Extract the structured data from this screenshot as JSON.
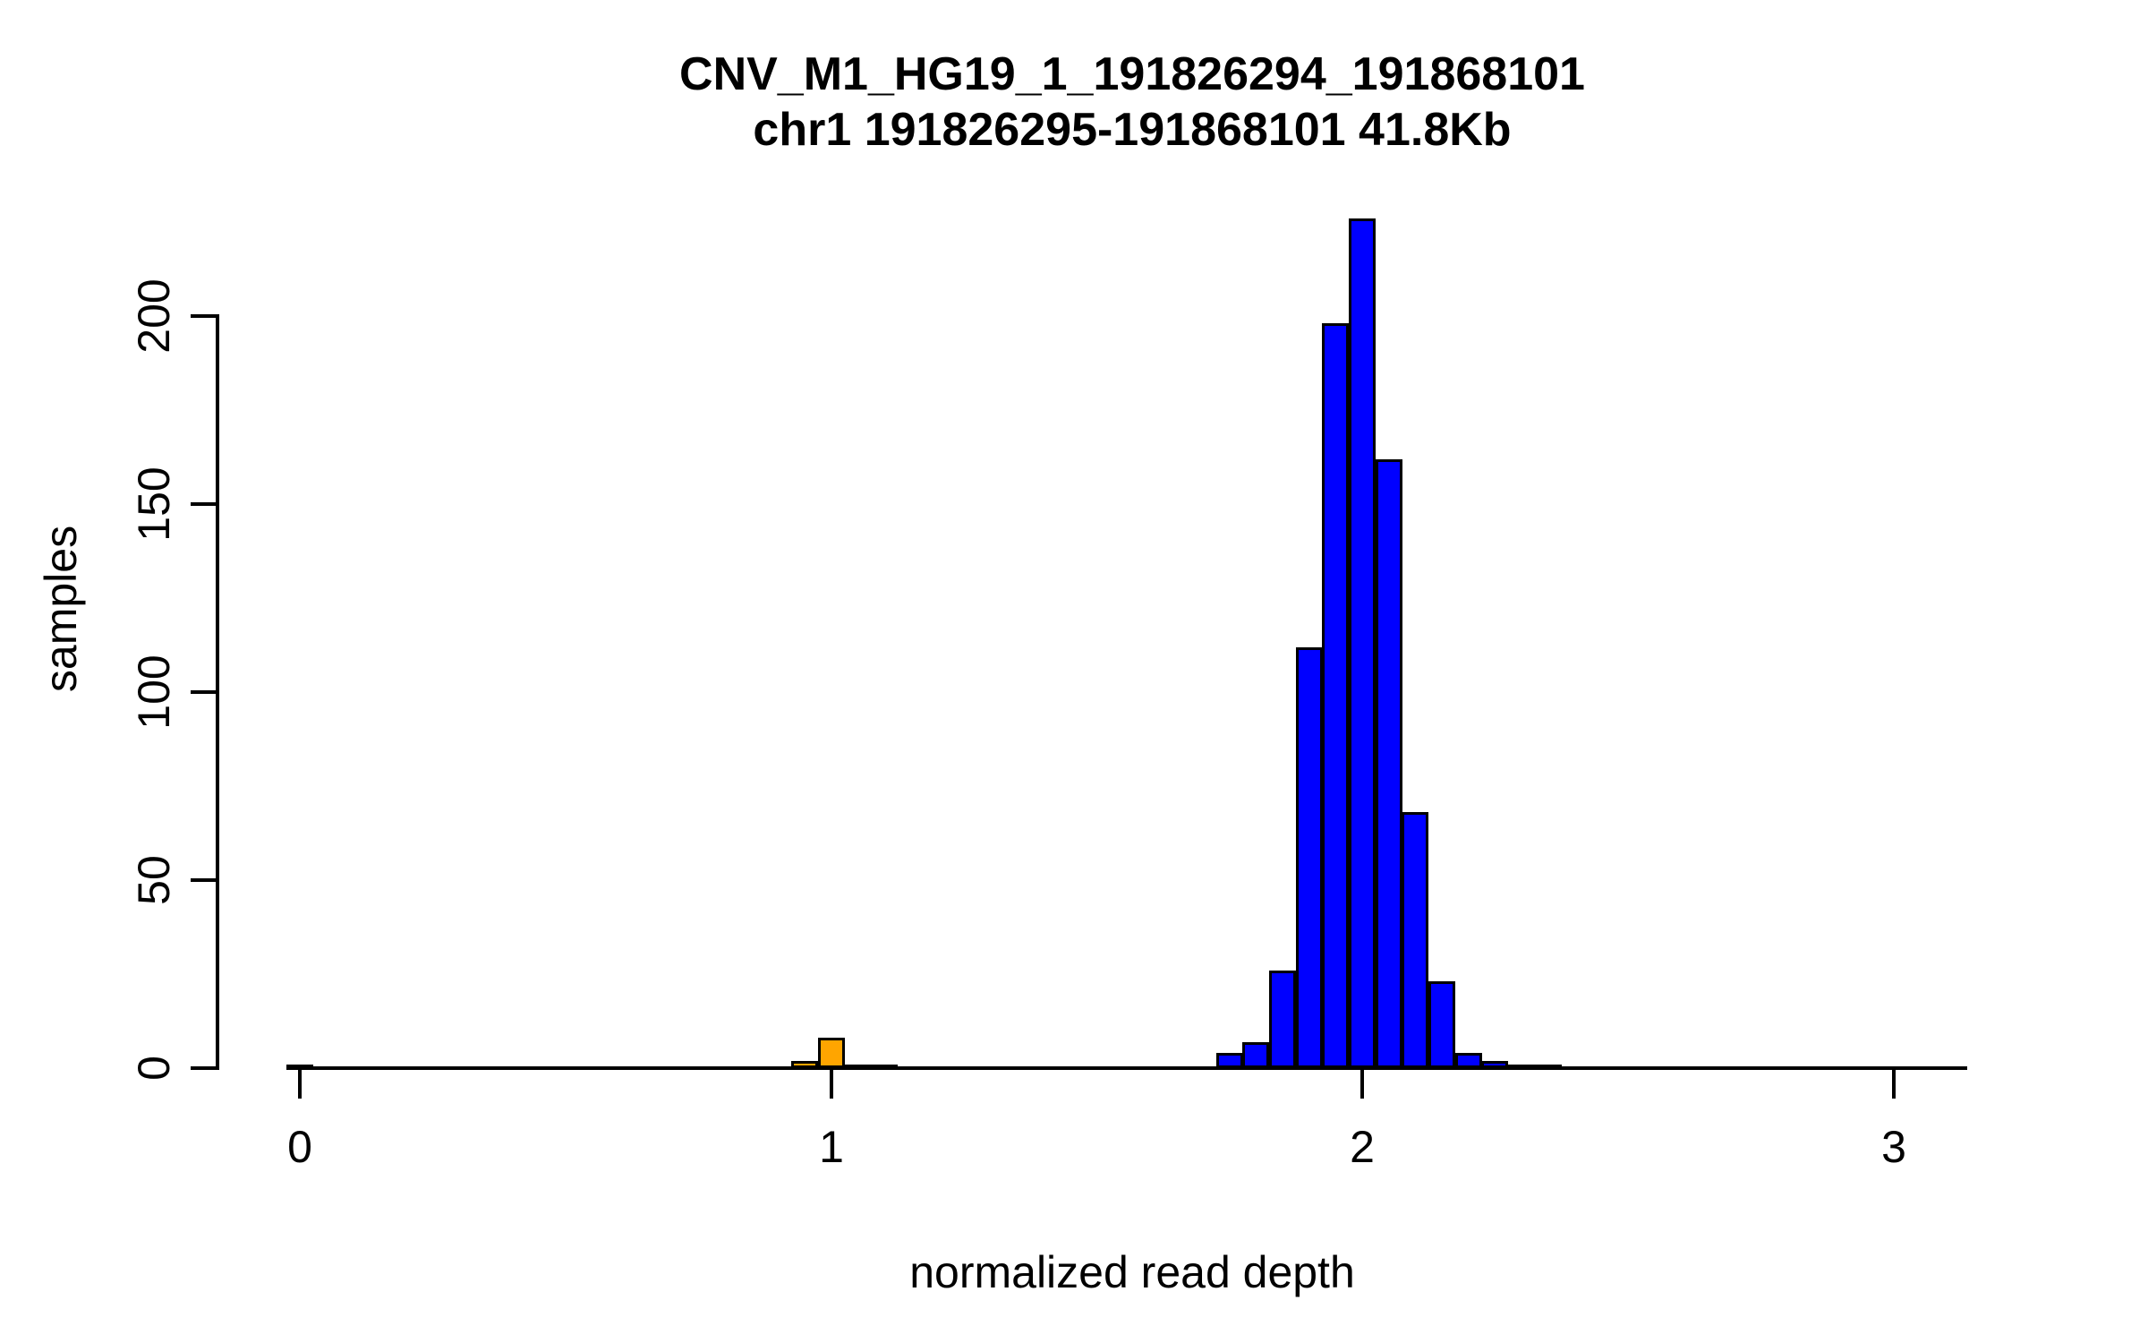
{
  "title": {
    "line1": "CNV_M1_HG19_1_191826294_191868101",
    "line2": "chr1 191826295-191868101 41.8Kb"
  },
  "chart_data": {
    "type": "bar",
    "subtype": "histogram",
    "title": "CNV_M1_HG19_1_191826294_191868101",
    "subtitle": "chr1 191826295-191868101 41.8Kb",
    "xlabel": "normalized read depth",
    "ylabel": "samples",
    "x_ticks": [
      0,
      1,
      2,
      3
    ],
    "y_ticks": [
      0,
      50,
      100,
      150,
      200
    ],
    "xlim": [
      -0.025,
      3.14
    ],
    "ylim": [
      0,
      226
    ],
    "bin_width": 0.05,
    "grid": false,
    "legend": false,
    "bars": [
      {
        "center": 0.0,
        "count": 1,
        "color": "green"
      },
      {
        "center": 0.95,
        "count": 2,
        "color": "orange"
      },
      {
        "center": 1.0,
        "count": 8,
        "color": "orange"
      },
      {
        "center": 1.05,
        "count": 1,
        "color": "orange"
      },
      {
        "center": 1.1,
        "count": 1,
        "color": "orange"
      },
      {
        "center": 1.75,
        "count": 4,
        "color": "blue"
      },
      {
        "center": 1.8,
        "count": 7,
        "color": "blue"
      },
      {
        "center": 1.85,
        "count": 26,
        "color": "blue"
      },
      {
        "center": 1.9,
        "count": 112,
        "color": "blue"
      },
      {
        "center": 1.95,
        "count": 198,
        "color": "blue"
      },
      {
        "center": 2.0,
        "count": 226,
        "color": "blue"
      },
      {
        "center": 2.05,
        "count": 162,
        "color": "blue"
      },
      {
        "center": 2.1,
        "count": 68,
        "color": "blue"
      },
      {
        "center": 2.15,
        "count": 23,
        "color": "blue"
      },
      {
        "center": 2.2,
        "count": 4,
        "color": "blue"
      },
      {
        "center": 2.25,
        "count": 2,
        "color": "blue"
      },
      {
        "center": 2.3,
        "count": 1,
        "color": "blue"
      },
      {
        "center": 2.35,
        "count": 1,
        "color": "blue"
      }
    ],
    "colors": {
      "blue": "#0000ff",
      "orange": "#ffa500",
      "green": "#147814",
      "axis": "#000000",
      "background": "#ffffff"
    }
  }
}
